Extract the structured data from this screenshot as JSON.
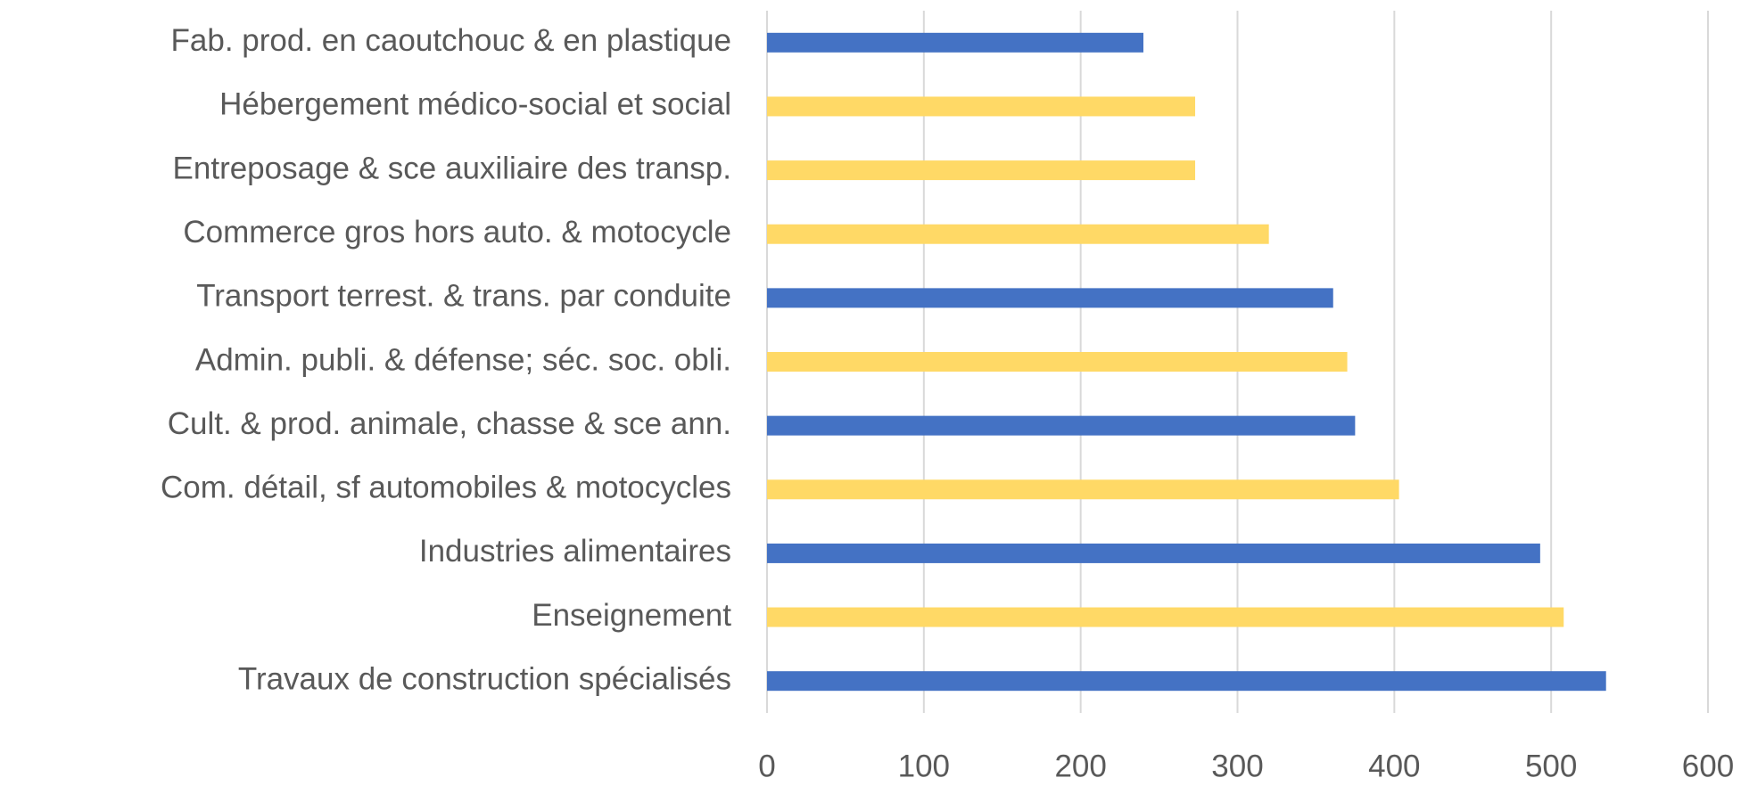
{
  "chart_data": {
    "type": "hbar",
    "categories": [
      "Fab. prod. en caoutchouc & en plastique",
      "Hébergement médico-social et social",
      "Entreposage & sce auxiliaire des transp.",
      "Commerce gros hors auto. & motocycle",
      "Transport terrest. & trans. par conduite",
      "Admin. publi. & défense; séc. soc. obli.",
      "Cult. & prod. animale, chasse & sce ann.",
      "Com. détail, sf automobiles & motocycles",
      "Industries alimentaires",
      "Enseignement",
      "Travaux de construction spécialisés"
    ],
    "values": [
      240,
      273,
      273,
      320,
      361,
      370,
      375,
      403,
      493,
      508,
      535
    ],
    "colors": [
      "#4472c4",
      "#ffd966",
      "#ffd966",
      "#ffd966",
      "#4472c4",
      "#ffd966",
      "#4472c4",
      "#ffd966",
      "#4472c4",
      "#ffd966",
      "#4472c4"
    ],
    "xlim": [
      0,
      600
    ],
    "xticks": [
      0,
      100,
      200,
      300,
      400,
      500,
      600
    ],
    "grid": true
  }
}
